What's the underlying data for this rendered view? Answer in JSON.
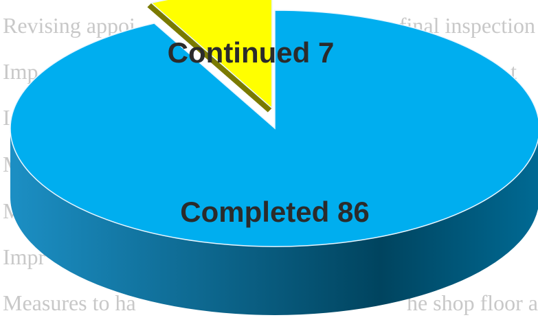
{
  "chart_data": {
    "type": "pie",
    "three_d": true,
    "categories": [
      "Completed",
      "Continued"
    ],
    "values": [
      86,
      7
    ],
    "value_labels": [
      "Completed 86",
      "Continued 7"
    ],
    "colors": [
      "#00aeef",
      "#ffff00"
    ],
    "annotations": [
      "Revising appoi",
      "final inspection",
      "Imp",
      "t",
      "I",
      "M",
      "M",
      "Impr",
      "Measures to ha",
      "he shop floor a"
    ]
  }
}
